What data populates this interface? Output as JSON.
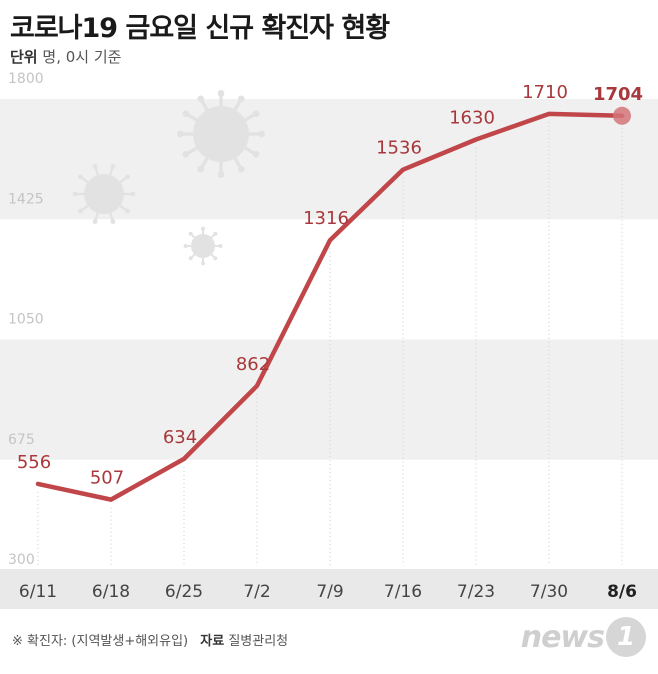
{
  "header": {
    "title": "코로나19 금요일 신규 확진자 현황",
    "unit_label": "단위",
    "unit_text": "명, 0시 기준"
  },
  "footer": {
    "note": "※ 확진자: (지역발생+해외유입)",
    "source_label": "자료",
    "source": "질병관리청"
  },
  "logo": {
    "text": "news",
    "mark": "1"
  },
  "colors": {
    "line": "#c0464a",
    "label": "#a8383c",
    "band": "#f0f0f0",
    "axis_bar": "#e9e9e9",
    "virus": "#e2e2e2"
  },
  "chart_data": {
    "type": "line",
    "title": "코로나19 금요일 신규 확진자 현황",
    "xlabel": "",
    "ylabel": "",
    "categories": [
      "6/11",
      "6/18",
      "6/25",
      "7/2",
      "7/9",
      "7/16",
      "7/23",
      "7/30",
      "8/6"
    ],
    "series": [
      {
        "values": [
          556,
          507,
          634,
          862,
          1316,
          1536,
          1630,
          1710,
          1704
        ]
      }
    ],
    "data_labels": [
      "556",
      "507",
      "634",
      "862",
      "1316",
      "1536",
      "1630",
      "1710",
      "1704"
    ],
    "y_ticks": [
      300,
      675,
      1050,
      1425,
      1800
    ],
    "y_tick_labels": [
      "300",
      "675",
      "1050",
      "1425",
      "1800"
    ],
    "ylim": [
      300,
      1800
    ],
    "highlight_index": 8,
    "grid": false,
    "legend": "none"
  }
}
